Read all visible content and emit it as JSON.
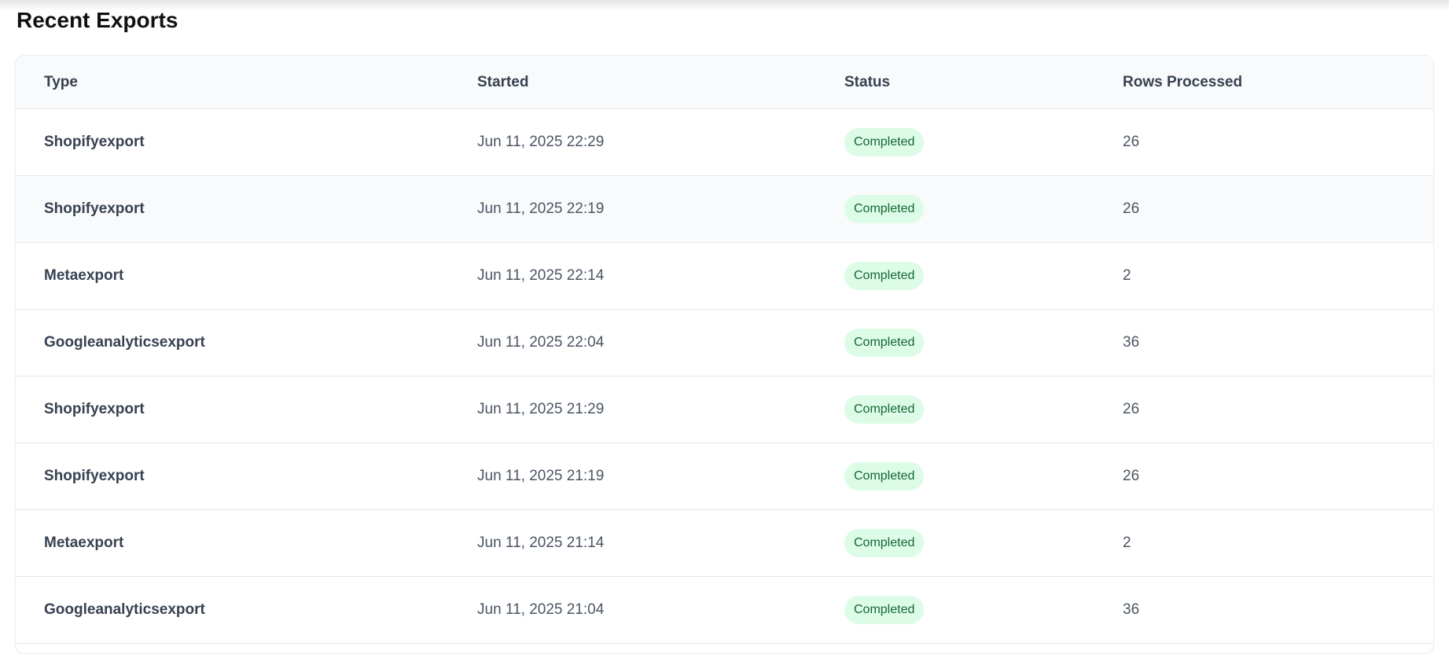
{
  "title": "Recent Exports",
  "columns": [
    "Type",
    "Started",
    "Status",
    "Rows Processed"
  ],
  "colors": {
    "badge_bg": "#dcfce7",
    "badge_text": "#166534",
    "header_bg": "#f9fafb"
  },
  "rows": [
    {
      "type": "Shopifyexport",
      "started": "Jun 11, 2025 22:29",
      "status": "Completed",
      "rows": "26"
    },
    {
      "type": "Shopifyexport",
      "started": "Jun 11, 2025 22:19",
      "status": "Completed",
      "rows": "26"
    },
    {
      "type": "Metaexport",
      "started": "Jun 11, 2025 22:14",
      "status": "Completed",
      "rows": "2"
    },
    {
      "type": "Googleanalyticsexport",
      "started": "Jun 11, 2025 22:04",
      "status": "Completed",
      "rows": "36"
    },
    {
      "type": "Shopifyexport",
      "started": "Jun 11, 2025 21:29",
      "status": "Completed",
      "rows": "26"
    },
    {
      "type": "Shopifyexport",
      "started": "Jun 11, 2025 21:19",
      "status": "Completed",
      "rows": "26"
    },
    {
      "type": "Metaexport",
      "started": "Jun 11, 2025 21:14",
      "status": "Completed",
      "rows": "2"
    },
    {
      "type": "Googleanalyticsexport",
      "started": "Jun 11, 2025 21:04",
      "status": "Completed",
      "rows": "36"
    }
  ]
}
